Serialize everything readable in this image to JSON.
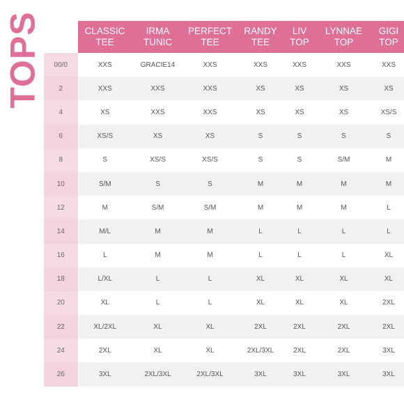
{
  "title": "TOPS",
  "columns": [
    "CLASSIC\nTEE",
    "IRMA\nTUNIC",
    "PERFECT\nTEE",
    "RANDY\nTEE",
    "LIV\nTOP",
    "LYNNAE\nTOP",
    "GIGI\nTOP"
  ],
  "rows": [
    {
      "size": "00/0",
      "values": [
        "XXS",
        "GRACIE14",
        "XXS",
        "XXS",
        "XXS",
        "XXS",
        "XXS"
      ]
    },
    {
      "size": "2",
      "values": [
        "XXS",
        "XXS",
        "XXS",
        "XS",
        "XS",
        "XS",
        "XS"
      ]
    },
    {
      "size": "4",
      "values": [
        "XS",
        "XXS",
        "XXS",
        "XS",
        "XS",
        "XS",
        "XS/S"
      ]
    },
    {
      "size": "6",
      "values": [
        "XS/S",
        "XS",
        "XS",
        "S",
        "S",
        "S",
        "S"
      ]
    },
    {
      "size": "8",
      "values": [
        "S",
        "XS/S",
        "XS/S",
        "S",
        "S",
        "S/M",
        "M"
      ]
    },
    {
      "size": "10",
      "values": [
        "S/M",
        "S",
        "S",
        "M",
        "M",
        "M",
        "M"
      ]
    },
    {
      "size": "12",
      "values": [
        "M",
        "S/M",
        "S/M",
        "M",
        "M",
        "M",
        "L"
      ]
    },
    {
      "size": "14",
      "values": [
        "M/L",
        "M",
        "M",
        "L",
        "L",
        "L",
        "L"
      ]
    },
    {
      "size": "16",
      "values": [
        "L",
        "M",
        "M",
        "L",
        "L",
        "L",
        "XL"
      ]
    },
    {
      "size": "18",
      "values": [
        "L/XL",
        "L",
        "L",
        "XL",
        "XL",
        "XL",
        "XL"
      ]
    },
    {
      "size": "20",
      "values": [
        "XL",
        "L",
        "L",
        "XL",
        "XL",
        "XL",
        "2XL"
      ]
    },
    {
      "size": "22",
      "values": [
        "XL/2XL",
        "XL",
        "XL",
        "2XL",
        "2XL",
        "2XL",
        "2XL"
      ]
    },
    {
      "size": "24",
      "values": [
        "2XL",
        "XL",
        "XL",
        "2XL/3XL",
        "2XL",
        "2XL",
        "3XL"
      ]
    },
    {
      "size": "26",
      "values": [
        "3XL",
        "2XL/3XL",
        "2XL/3XL",
        "3XL",
        "3XL",
        "3XL",
        "3XL"
      ]
    }
  ],
  "colors": {
    "accent": "#df6f96",
    "size_column": "#f6dbe4",
    "row_band": "#f1f1f2",
    "cell_text": "#555555"
  }
}
